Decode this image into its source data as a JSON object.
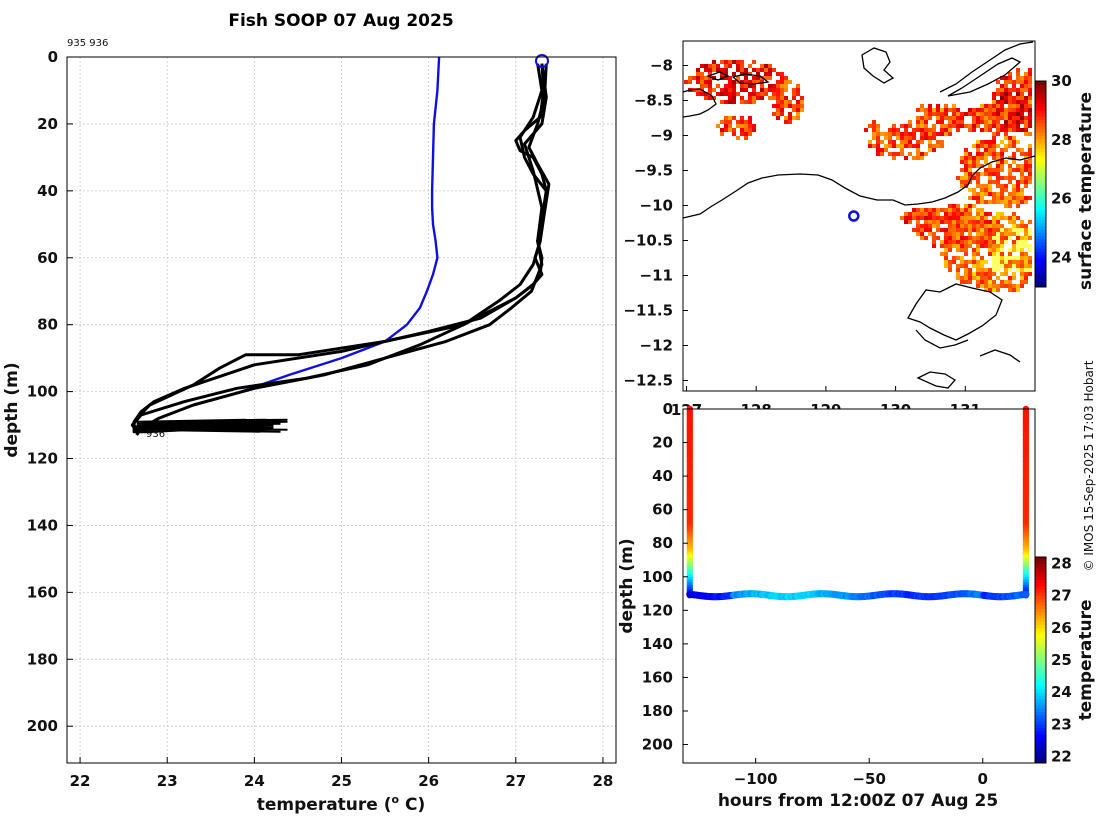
{
  "figure": {
    "title": "Fish SOOP 07 Aug 2025",
    "credit": "© IMOS 15-Sep-2025 17:03 Hobart",
    "float_ids": "935 936",
    "profile_tag": "936"
  },
  "chart_data": [
    {
      "name": "temperature-profile",
      "type": "line",
      "xlabel": "temperature (° C)",
      "xlabel_prefix": "temperature (",
      "xlabel_sup": "o",
      "xlabel_suffix": " C)",
      "ylabel": "depth (m)",
      "xlim": [
        21.85,
        28.15
      ],
      "ylim": [
        0,
        211
      ],
      "y_reversed": true,
      "grid": true,
      "xticks": [
        22,
        23,
        24,
        25,
        26,
        27,
        28
      ],
      "yticks": [
        0,
        20,
        40,
        60,
        80,
        100,
        120,
        140,
        160,
        180,
        200
      ],
      "series": [
        {
          "name": "climatology",
          "color": "#1010dd",
          "x": [
            26.12,
            26.1,
            26.06,
            26.05,
            26.04,
            26.04,
            26.05,
            26.08,
            26.1,
            26.05,
            25.98,
            25.9,
            25.75,
            25.5,
            25.0,
            24.4,
            23.85
          ],
          "y": [
            0,
            10,
            20,
            30,
            40,
            45,
            50,
            55,
            60,
            65,
            70,
            75,
            80,
            85,
            90,
            95,
            100
          ]
        },
        {
          "name": "profile-1",
          "color": "#000000",
          "x": [
            27.3,
            27.32,
            27.28,
            27.1,
            27.0,
            27.05,
            27.2,
            27.3,
            27.35,
            27.32,
            27.3,
            27.25,
            27.3,
            27.28,
            27.2,
            27.0,
            26.6,
            26.0,
            25.0,
            24.0,
            23.2,
            22.85,
            22.7,
            22.62,
            22.62,
            22.75
          ],
          "y": [
            2,
            10,
            18,
            22,
            25,
            28,
            30,
            35,
            40,
            45,
            50,
            55,
            60,
            65,
            68,
            72,
            78,
            82,
            88,
            92,
            99,
            103,
            106,
            109,
            112,
            112
          ]
        },
        {
          "name": "profile-2",
          "color": "#000000",
          "x": [
            27.25,
            27.3,
            27.2,
            27.05,
            27.1,
            27.2,
            27.35,
            27.3,
            27.28,
            27.22,
            27.3,
            27.2,
            27.0,
            26.4,
            25.5,
            24.5,
            23.9,
            23.6,
            23.3,
            22.8,
            22.65,
            22.6,
            22.65
          ],
          "y": [
            2,
            10,
            18,
            24,
            30,
            35,
            40,
            50,
            55,
            60,
            65,
            68,
            72,
            80,
            85,
            89,
            89,
            93,
            98,
            104,
            108,
            110,
            112
          ]
        },
        {
          "name": "profile-3",
          "color": "#000000",
          "x": [
            27.35,
            27.33,
            27.25,
            27.15,
            27.25,
            27.38,
            27.32,
            27.28,
            27.2,
            27.05,
            26.8,
            26.4,
            25.9,
            25.3,
            24.6,
            23.8,
            23.2,
            22.7,
            22.6,
            22.75,
            23.5,
            24.0
          ],
          "y": [
            2,
            12,
            20,
            27,
            32,
            38,
            48,
            55,
            62,
            68,
            73,
            80,
            86,
            92,
            96,
            99,
            103,
            107,
            110,
            112,
            111,
            110
          ]
        },
        {
          "name": "profile-4",
          "color": "#000000",
          "x": [
            27.3,
            27.35,
            27.3,
            27.1,
            27.2,
            27.3,
            27.25,
            27.3,
            27.18,
            26.95,
            26.7,
            26.2,
            25.5,
            24.8,
            24.0,
            23.3,
            22.9,
            22.7,
            22.65
          ],
          "y": [
            2,
            12,
            20,
            26,
            34,
            45,
            55,
            62,
            70,
            75,
            80,
            85,
            90,
            95,
            99,
            104,
            108,
            111,
            113
          ]
        }
      ]
    },
    {
      "name": "surface-temperature-map",
      "type": "heatmap",
      "ylim": [
        -12.65,
        -7.65
      ],
      "xlim": [
        126.95,
        132
      ],
      "yticks": [
        -8,
        -8.5,
        -9,
        -9.5,
        -10,
        -10.5,
        -11,
        -11.5,
        -12,
        -12.5
      ],
      "xticks": [
        127,
        128,
        129,
        130,
        131
      ],
      "colorbar_label": "surface temperature",
      "colorbar_range": [
        23,
        30
      ],
      "colorbar_ticks": [
        30,
        28,
        26,
        24
      ],
      "marker": {
        "lon": 129.4,
        "lat": -10.15,
        "color": "#1010dd"
      }
    },
    {
      "name": "temperature-section",
      "type": "heatmap",
      "xlabel": "hours from 12:00Z 07 Aug 25",
      "ylabel": "depth (m)",
      "xlim": [
        -132,
        23
      ],
      "ylim": [
        0,
        211
      ],
      "y_reversed": true,
      "xticks": [
        -100,
        -50,
        0
      ],
      "yticks": [
        0,
        20,
        40,
        60,
        80,
        100,
        120,
        140,
        160,
        180,
        200
      ],
      "colorbar_label": "temperature",
      "colorbar_range": [
        21.8,
        28.2
      ],
      "colorbar_ticks": [
        28,
        27,
        26,
        25,
        24,
        23,
        22
      ],
      "profile_hours": [
        -129,
        19
      ],
      "bottom_depth": 111
    }
  ]
}
